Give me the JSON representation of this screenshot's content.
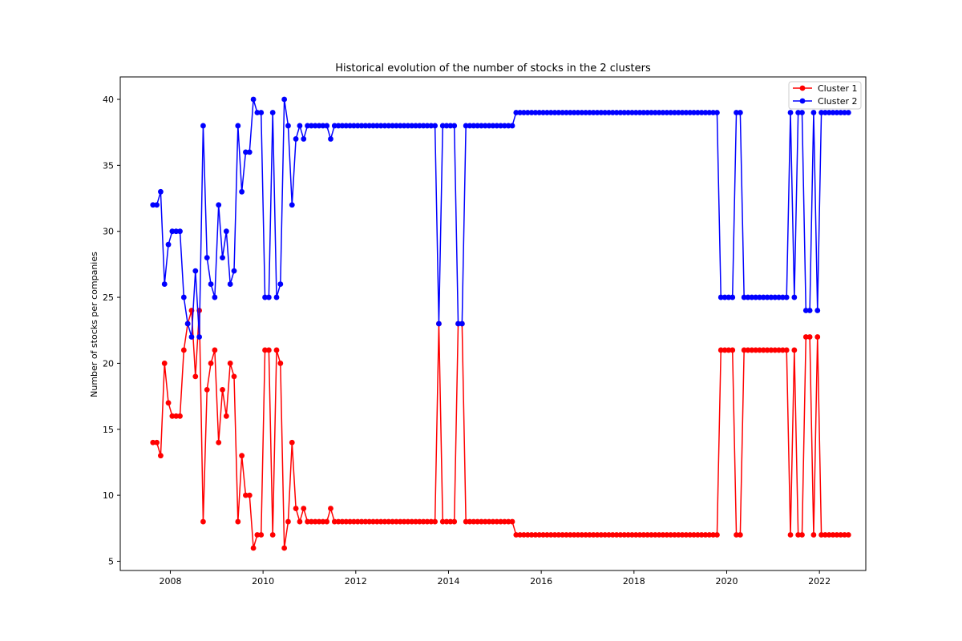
{
  "chart_data": {
    "type": "line",
    "title": "Historical evolution of the number of stocks in the 2 clusters",
    "xlabel": "",
    "ylabel": "Number of stocks per companies",
    "xlim": [
      2006.92,
      2023.0
    ],
    "ylim": [
      4.3,
      41.7
    ],
    "xticks": [
      2008,
      2010,
      2012,
      2014,
      2016,
      2018,
      2020,
      2022
    ],
    "xtick_labels": [
      "2008",
      "2010",
      "2012",
      "2014",
      "2016",
      "2018",
      "2020",
      "2022"
    ],
    "yticks": [
      5,
      10,
      15,
      20,
      25,
      30,
      35,
      40
    ],
    "ytick_labels": [
      "5",
      "10",
      "15",
      "20",
      "25",
      "30",
      "35",
      "40"
    ],
    "grid": false,
    "legend_position": "upper right",
    "x_start": 2007.625,
    "x_step_months": 1,
    "series": [
      {
        "name": "Cluster 1",
        "color": "#ff0000",
        "values": [
          14,
          14,
          13,
          20,
          17,
          16,
          16,
          16,
          21,
          23,
          24,
          19,
          24,
          8,
          18,
          20,
          21,
          14,
          18,
          16,
          20,
          19,
          8,
          13,
          10,
          10,
          6,
          7,
          7,
          21,
          21,
          7,
          21,
          20,
          6,
          8,
          14,
          9,
          8,
          9,
          8,
          8,
          8,
          8,
          8,
          8,
          9,
          8,
          8,
          8,
          8,
          8,
          8,
          8,
          8,
          8,
          8,
          8,
          8,
          8,
          8,
          8,
          8,
          8,
          8,
          8,
          8,
          8,
          8,
          8,
          8,
          8,
          8,
          8,
          23,
          8,
          8,
          8,
          8,
          23,
          23,
          8,
          8,
          8,
          8,
          8,
          8,
          8,
          8,
          8,
          8,
          8,
          8,
          8,
          7,
          7,
          7,
          7,
          7,
          7,
          7,
          7,
          7,
          7,
          7,
          7,
          7,
          7,
          7,
          7,
          7,
          7,
          7,
          7,
          7,
          7,
          7,
          7,
          7,
          7,
          7,
          7,
          7,
          7,
          7,
          7,
          7,
          7,
          7,
          7,
          7,
          7,
          7,
          7,
          7,
          7,
          7,
          7,
          7,
          7,
          7,
          7,
          7,
          7,
          7,
          7,
          7,
          21,
          21,
          21,
          21,
          7,
          7,
          21,
          21,
          21,
          21,
          21,
          21,
          21,
          21,
          21,
          21,
          21,
          21,
          7,
          21,
          7,
          7,
          22,
          22,
          7,
          22,
          7,
          7,
          7,
          7,
          7,
          7,
          7,
          7
        ]
      },
      {
        "name": "Cluster 2",
        "color": "#0000ff",
        "values": [
          32,
          32,
          33,
          26,
          29,
          30,
          30,
          30,
          25,
          23,
          22,
          27,
          22,
          38,
          28,
          26,
          25,
          32,
          28,
          30,
          26,
          27,
          38,
          33,
          36,
          36,
          40,
          39,
          39,
          25,
          25,
          39,
          25,
          26,
          40,
          38,
          32,
          37,
          38,
          37,
          38,
          38,
          38,
          38,
          38,
          38,
          37,
          38,
          38,
          38,
          38,
          38,
          38,
          38,
          38,
          38,
          38,
          38,
          38,
          38,
          38,
          38,
          38,
          38,
          38,
          38,
          38,
          38,
          38,
          38,
          38,
          38,
          38,
          38,
          23,
          38,
          38,
          38,
          38,
          23,
          23,
          38,
          38,
          38,
          38,
          38,
          38,
          38,
          38,
          38,
          38,
          38,
          38,
          38,
          39,
          39,
          39,
          39,
          39,
          39,
          39,
          39,
          39,
          39,
          39,
          39,
          39,
          39,
          39,
          39,
          39,
          39,
          39,
          39,
          39,
          39,
          39,
          39,
          39,
          39,
          39,
          39,
          39,
          39,
          39,
          39,
          39,
          39,
          39,
          39,
          39,
          39,
          39,
          39,
          39,
          39,
          39,
          39,
          39,
          39,
          39,
          39,
          39,
          39,
          39,
          39,
          39,
          25,
          25,
          25,
          25,
          39,
          39,
          25,
          25,
          25,
          25,
          25,
          25,
          25,
          25,
          25,
          25,
          25,
          25,
          39,
          25,
          39,
          39,
          24,
          24,
          39,
          24,
          39,
          39,
          39,
          39,
          39,
          39,
          39,
          39
        ]
      }
    ]
  }
}
